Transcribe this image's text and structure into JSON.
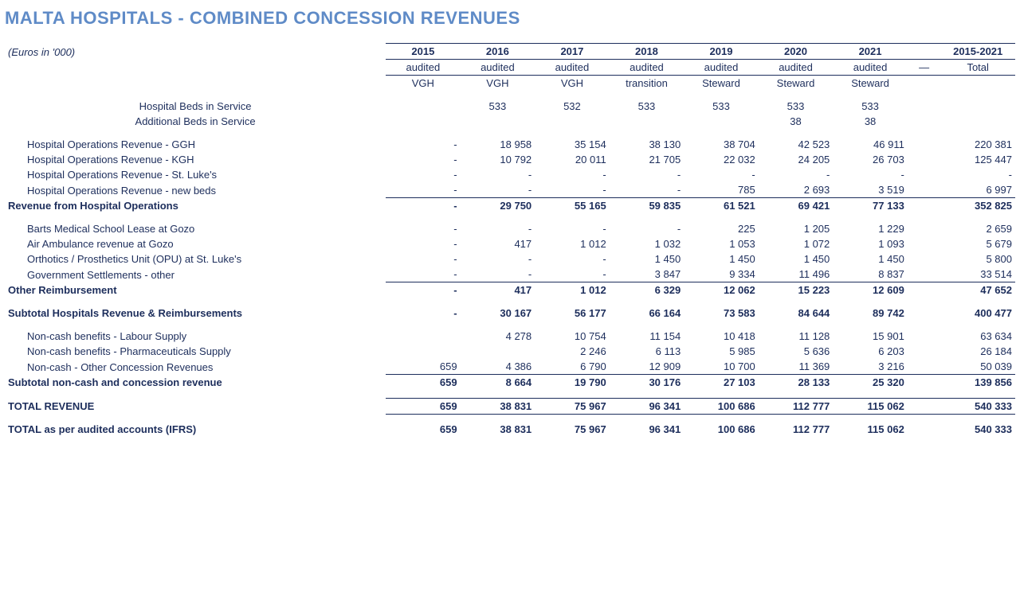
{
  "title": "MALTA HOSPITALS - COMBINED CONCESSION REVENUES",
  "units": "(Euros in '000)",
  "years": [
    "2015",
    "2016",
    "2017",
    "2018",
    "2019",
    "2020",
    "2021"
  ],
  "total_col": "2015-2021",
  "audit": [
    "audited",
    "audited",
    "audited",
    "audited",
    "audited",
    "audited",
    "audited"
  ],
  "dash_hdr": "—",
  "total_hdr": "Total",
  "operator": [
    "VGH",
    "VGH",
    "VGH",
    "transition",
    "Steward",
    "Steward",
    "Steward"
  ],
  "beds_label": "Hospital Beds in Service",
  "beds": [
    "",
    "533",
    "532",
    "533",
    "533",
    "533",
    "533",
    ""
  ],
  "addbeds_label": "Additional Beds in Service",
  "addbeds": [
    "",
    "",
    "",
    "",
    "",
    "38",
    "38",
    ""
  ],
  "rows1": [
    {
      "label": "Hospital Operations Revenue - GGH",
      "v": [
        "-",
        "18 958",
        "35 154",
        "38 130",
        "38 704",
        "42 523",
        "46 911",
        "220 381"
      ]
    },
    {
      "label": "Hospital Operations Revenue - KGH",
      "v": [
        "-",
        "10 792",
        "20 011",
        "21 705",
        "22 032",
        "24 205",
        "26 703",
        "125 447"
      ]
    },
    {
      "label": "Hospital Operations Revenue - St. Luke's",
      "v": [
        "-",
        "-",
        "-",
        "-",
        "-",
        "-",
        "-",
        "-"
      ]
    },
    {
      "label": "Hospital Operations Revenue - new beds",
      "v": [
        "-",
        "-",
        "-",
        "-",
        "785",
        "2 693",
        "3 519",
        "6 997"
      ]
    }
  ],
  "sub1_label": "Revenue from Hospital Operations",
  "sub1": [
    "-",
    "29 750",
    "55 165",
    "59 835",
    "61 521",
    "69 421",
    "77 133",
    "352 825"
  ],
  "rows2": [
    {
      "label": "Barts Medical School Lease at Gozo",
      "v": [
        "-",
        "-",
        "-",
        "-",
        "225",
        "1 205",
        "1 229",
        "2 659"
      ]
    },
    {
      "label": "Air Ambulance revenue at Gozo",
      "v": [
        "-",
        "417",
        "1 012",
        "1 032",
        "1 053",
        "1 072",
        "1 093",
        "5 679"
      ]
    },
    {
      "label": "Orthotics / Prosthetics Unit (OPU) at St. Luke's",
      "v": [
        "-",
        "-",
        "-",
        "1 450",
        "1 450",
        "1 450",
        "1 450",
        "5 800"
      ]
    },
    {
      "label": "Government Settlements - other",
      "v": [
        "-",
        "-",
        "-",
        "3 847",
        "9 334",
        "11 496",
        "8 837",
        "33 514"
      ]
    }
  ],
  "sub2_label": "Other Reimbursement",
  "sub2": [
    "-",
    "417",
    "1 012",
    "6 329",
    "12 062",
    "15 223",
    "12 609",
    "47 652"
  ],
  "sub3_label": "Subtotal Hospitals Revenue & Reimbursements",
  "sub3": [
    "-",
    "30 167",
    "56 177",
    "66 164",
    "73 583",
    "84 644",
    "89 742",
    "400 477"
  ],
  "rows3": [
    {
      "label": "Non-cash benefits - Labour Supply",
      "v": [
        "",
        "4 278",
        "10 754",
        "11 154",
        "10 418",
        "11 128",
        "15 901",
        "63 634"
      ]
    },
    {
      "label": "Non-cash benefits - Pharmaceuticals Supply",
      "v": [
        "",
        "",
        "2 246",
        "6 113",
        "5 985",
        "5 636",
        "6 203",
        "26 184"
      ]
    },
    {
      "label": "Non-cash - Other Concession Revenues",
      "v": [
        "659",
        "4 386",
        "6 790",
        "12 909",
        "10 700",
        "11 369",
        "3 216",
        "50 039"
      ]
    }
  ],
  "sub4_label": "Subtotal non-cash and concession revenue",
  "sub4": [
    "659",
    "8 664",
    "19 790",
    "30 176",
    "27 103",
    "28 133",
    "25 320",
    "139 856"
  ],
  "total_label": "TOTAL REVENUE",
  "total": [
    "659",
    "38 831",
    "75 967",
    "96 341",
    "100 686",
    "112 777",
    "115 062",
    "540 333"
  ],
  "ifrs_label": "TOTAL as per audited accounts (IFRS)",
  "ifrs": [
    "659",
    "38 831",
    "75 967",
    "96 341",
    "100 686",
    "112 777",
    "115 062",
    "540 333"
  ],
  "colors": {
    "fg": "#1d2e5c",
    "accent": "#5f8bc7",
    "bg": "#ffffff"
  },
  "font": {
    "family": "Arial",
    "title_size": 22,
    "body_size": 13
  }
}
